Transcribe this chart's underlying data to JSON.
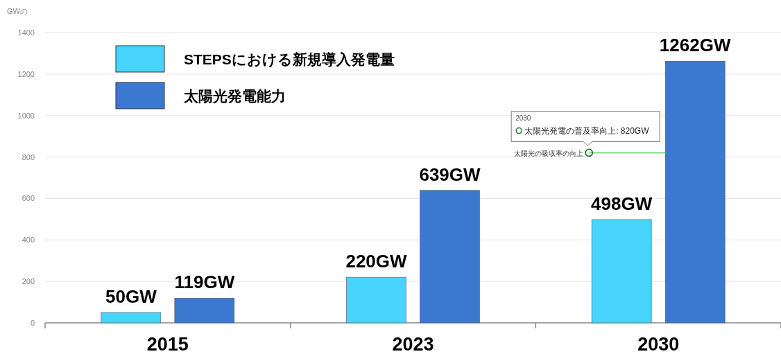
{
  "chart_data": {
    "type": "bar",
    "ylabel": "GWの",
    "categories": [
      "2015",
      "2023",
      "2030"
    ],
    "series": [
      {
        "name": "STEPSにおける新規導入発電量",
        "color": "#47d4fd",
        "values": [
          50,
          220,
          498
        ],
        "value_labels": [
          "50GW",
          "220GW",
          "498GW"
        ]
      },
      {
        "name": "太陽光発電能力",
        "color": "#3b78d0",
        "values": [
          119,
          639,
          1262
        ],
        "value_labels": [
          "119GW",
          "639GW",
          "1262GW"
        ]
      }
    ],
    "ylim": [
      0,
      1400
    ],
    "yticks": [
      0,
      200,
      400,
      600,
      800,
      1000,
      1200,
      1400
    ],
    "grid": "y",
    "legend": "top left",
    "ref_lines": [
      {
        "axis": "y",
        "value": 820,
        "label": "太陽光の吸収率の向上",
        "color": "#7ee08a"
      }
    ],
    "annotations": [
      "2030",
      "太陽光発電の普及率向上: 820GW"
    ]
  }
}
